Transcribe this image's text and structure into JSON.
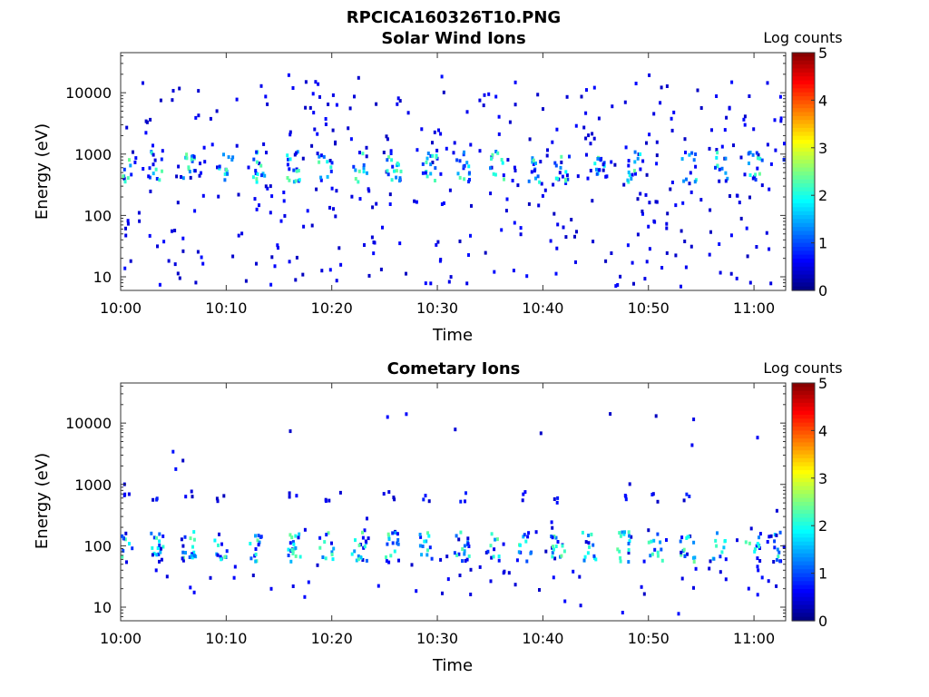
{
  "figure_title": "RPCICA160326T10.PNG",
  "chart_data": [
    {
      "type": "heatmap",
      "title": "Solar Wind Ions",
      "xlabel": "Time",
      "ylabel": "Energy (eV)",
      "y_scale": "log",
      "ylim": [
        6,
        45000
      ],
      "x_ticks": [
        "10:00",
        "10:10",
        "10:20",
        "10:30",
        "10:40",
        "10:50",
        "11:00"
      ],
      "y_ticks": [
        "10",
        "100",
        "1000",
        "10000"
      ],
      "colorbar": {
        "label": "Log counts",
        "ticks": [
          "0",
          "1",
          "2",
          "3",
          "4",
          "5"
        ],
        "range": [
          0,
          5
        ],
        "colormap": "jet"
      },
      "cluster_energy_eV": 620,
      "cluster_times_min": [
        0.2,
        3.1,
        6.5,
        9.8,
        13.0,
        16.2,
        19.2,
        22.6,
        25.8,
        29.2,
        32.4,
        35.5,
        38.9,
        41.7,
        45.0,
        48.6,
        53.7,
        56.8,
        60.0,
        63.4
      ]
    },
    {
      "type": "heatmap",
      "title": "Cometary Ions",
      "xlabel": "Time",
      "ylabel": "Energy (eV)",
      "y_scale": "log",
      "ylim": [
        6,
        45000
      ],
      "x_ticks": [
        "10:00",
        "10:10",
        "10:20",
        "10:30",
        "10:40",
        "10:50",
        "11:00"
      ],
      "y_ticks": [
        "10",
        "100",
        "1000",
        "10000"
      ],
      "colorbar": {
        "label": "Log counts",
        "ticks": [
          "0",
          "1",
          "2",
          "3",
          "4",
          "5"
        ],
        "range": [
          0,
          5
        ],
        "colormap": "jet"
      },
      "cluster_energy_eV": 95,
      "secondary_energy_eV": 620,
      "cluster_times_min": [
        0.3,
        3.3,
        6.3,
        9.3,
        12.8,
        16.2,
        19.4,
        22.5,
        25.6,
        28.9,
        32.2,
        35.1,
        38.1,
        41.3,
        44.2,
        47.6,
        50.6,
        53.6,
        56.6,
        59.8,
        62.5
      ]
    }
  ]
}
